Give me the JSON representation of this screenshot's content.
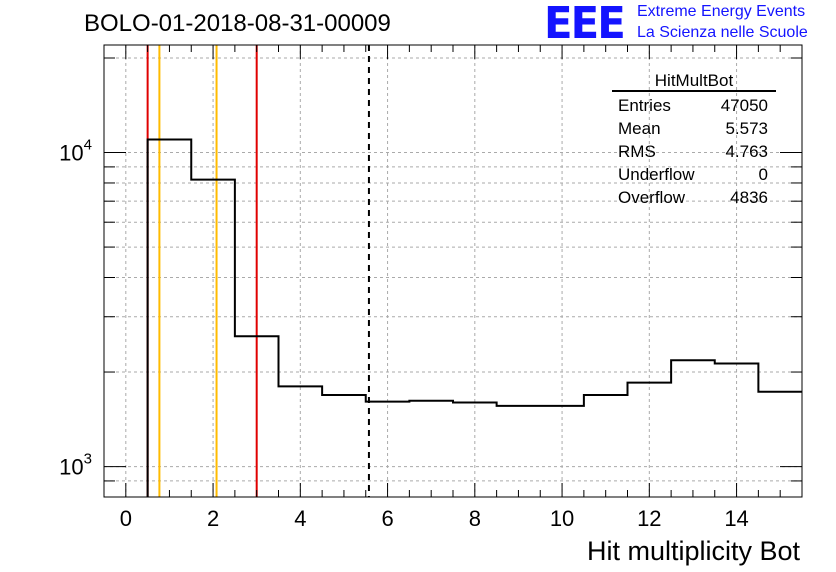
{
  "header": {
    "run_title": "BOLO-01-2018-08-31-00009",
    "logo_text": "EEE",
    "logo_line1": "Extreme Energy Events",
    "logo_line2": "La Scienza nelle Scuole",
    "logo_color": "#1414ff"
  },
  "stats_box": {
    "title": "HitMultBot",
    "rows": [
      {
        "label": "Entries",
        "value": "47050"
      },
      {
        "label": "Mean",
        "value": "5.573"
      },
      {
        "label": "RMS",
        "value": "4.763"
      },
      {
        "label": "Underflow",
        "value": "0"
      },
      {
        "label": "Overflow",
        "value": "4836"
      }
    ]
  },
  "chart_data": {
    "type": "histogram",
    "xlabel": "Hit multiplicity Bot",
    "ylabel": "",
    "xlim": [
      -0.5,
      15.5
    ],
    "ylim": [
      800,
      22000
    ],
    "y_scale": "log",
    "grid": true,
    "x_ticks": [
      "0",
      "2",
      "4",
      "6",
      "8",
      "10",
      "12",
      "14"
    ],
    "y_ticks": [
      {
        "base": "10",
        "exp": "3",
        "value": 1000
      },
      {
        "base": "10",
        "exp": "4",
        "value": 10000
      }
    ],
    "bin_edges": [
      -0.5,
      0.5,
      1.5,
      2.5,
      3.5,
      4.5,
      5.5,
      6.5,
      7.5,
      8.5,
      9.5,
      10.5,
      11.5,
      12.5,
      13.5,
      14.5,
      15.5
    ],
    "bin_values": [
      0,
      11000,
      8200,
      2600,
      1800,
      1690,
      1610,
      1620,
      1600,
      1560,
      1560,
      1690,
      1850,
      2180,
      2130,
      1730
    ],
    "vertical_lines": [
      {
        "x": 0.5,
        "color": "#e00000",
        "style": "solid"
      },
      {
        "x": 0.77,
        "color": "#ffbb00",
        "style": "solid"
      },
      {
        "x": 2.08,
        "color": "#ffbb00",
        "style": "solid"
      },
      {
        "x": 3.0,
        "color": "#e00000",
        "style": "solid"
      },
      {
        "x": 5.573,
        "color": "#000000",
        "style": "dashed"
      }
    ]
  }
}
